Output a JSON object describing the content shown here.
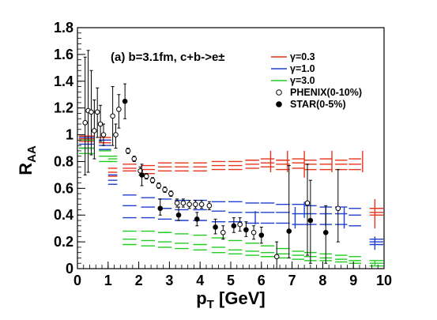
{
  "chart_data": {
    "type": "scatter",
    "annotation": "(a) b=3.1fm, c+b->e±",
    "xlabel": "p",
    "xlabel_sub": "T",
    "xlabel_unit": " [GeV]",
    "ylabel": "R",
    "ylabel_sub": "AA",
    "xlim": [
      0,
      10
    ],
    "ylim": [
      0,
      1.8
    ],
    "x_ticks": [
      0,
      1,
      2,
      3,
      4,
      5,
      6,
      7,
      8,
      9,
      10
    ],
    "y_ticks": [
      0,
      0.2,
      0.4,
      0.6,
      0.8,
      1,
      1.2,
      1.4,
      1.6,
      1.8
    ],
    "y_tick_labels": [
      "0",
      "0.2",
      "0.4",
      "0.6",
      "0.8",
      "1",
      "1.2",
      "1.4",
      "1.6",
      "1.8"
    ],
    "legend_position": "top-right",
    "series": [
      {
        "name": "γ=0.3",
        "color": "#e8341c",
        "style": "bands",
        "bands": [
          {
            "x": 0.3,
            "w": 0.5,
            "y": [
              0.99,
              0.97,
              0.95
            ]
          },
          {
            "x": 0.9,
            "w": 0.4,
            "y": [
              0.98,
              0.96,
              0.94
            ]
          },
          {
            "x": 1.15,
            "w": 0.3,
            "y": [
              0.75,
              0.72,
              0.69
            ]
          },
          {
            "x": 1.7,
            "w": 0.45,
            "y": [
              0.78,
              0.75,
              0.73
            ]
          },
          {
            "x": 2.3,
            "w": 0.45,
            "y": [
              0.77,
              0.74,
              0.71
            ]
          },
          {
            "x": 2.85,
            "w": 0.45,
            "y": [
              0.79,
              0.76,
              0.73
            ]
          },
          {
            "x": 3.4,
            "w": 0.45,
            "y": [
              0.79,
              0.76,
              0.73
            ]
          },
          {
            "x": 4.0,
            "w": 0.45,
            "y": [
              0.79,
              0.76,
              0.73
            ]
          },
          {
            "x": 4.6,
            "w": 0.45,
            "y": [
              0.8,
              0.77,
              0.74
            ]
          },
          {
            "x": 5.15,
            "w": 0.45,
            "y": [
              0.8,
              0.77,
              0.74
            ]
          },
          {
            "x": 5.7,
            "w": 0.45,
            "y": [
              0.81,
              0.78,
              0.75
            ]
          },
          {
            "x": 6.2,
            "w": 0.45,
            "y": [
              0.82,
              0.79,
              0.76
            ]
          },
          {
            "x": 6.7,
            "w": 0.45,
            "y": [
              0.81,
              0.78,
              0.74
            ]
          },
          {
            "x": 7.2,
            "w": 0.4,
            "y": [
              0.82,
              0.79,
              0.75
            ]
          },
          {
            "x": 7.6,
            "w": 0.4,
            "y": [
              0.81,
              0.78,
              0.74
            ]
          },
          {
            "x": 8.1,
            "w": 0.4,
            "y": [
              0.82,
              0.78,
              0.74
            ]
          },
          {
            "x": 8.6,
            "w": 0.4,
            "y": [
              0.81,
              0.78,
              0.74
            ]
          },
          {
            "x": 9.05,
            "w": 0.4,
            "y": [
              0.82,
              0.78,
              0.74
            ]
          },
          {
            "x": 9.75,
            "w": 0.45,
            "y": [
              0.45,
              0.42,
              0.4
            ]
          }
        ],
        "error_bars": [
          {
            "x": 6.3,
            "lo": 0.72,
            "hi": 0.88
          },
          {
            "x": 6.85,
            "lo": 0.72,
            "hi": 0.88
          },
          {
            "x": 7.4,
            "lo": 0.68,
            "hi": 0.88
          },
          {
            "x": 8.3,
            "lo": 0.72,
            "hi": 0.88
          },
          {
            "x": 9.3,
            "lo": 0.72,
            "hi": 0.88
          },
          {
            "x": 9.7,
            "lo": 0.3,
            "hi": 0.52
          }
        ]
      },
      {
        "name": "γ=1.0",
        "color": "#1f3fd0",
        "style": "bands",
        "bands": [
          {
            "x": 0.3,
            "w": 0.5,
            "y": [
              0.98,
              0.93,
              0.9
            ]
          },
          {
            "x": 0.9,
            "w": 0.4,
            "y": [
              0.96,
              0.92,
              0.89
            ]
          },
          {
            "x": 1.15,
            "w": 0.3,
            "y": [
              0.7,
              0.66,
              0.63
            ]
          },
          {
            "x": 1.7,
            "w": 0.45,
            "y": [
              0.55,
              0.47,
              0.38
            ]
          },
          {
            "x": 2.3,
            "w": 0.45,
            "y": [
              0.53,
              0.46,
              0.38
            ]
          },
          {
            "x": 2.85,
            "w": 0.45,
            "y": [
              0.52,
              0.45,
              0.37
            ]
          },
          {
            "x": 3.4,
            "w": 0.45,
            "y": [
              0.51,
              0.44,
              0.36
            ]
          },
          {
            "x": 4.0,
            "w": 0.45,
            "y": [
              0.51,
              0.44,
              0.36
            ]
          },
          {
            "x": 4.6,
            "w": 0.45,
            "y": [
              0.5,
              0.43,
              0.35
            ]
          },
          {
            "x": 5.15,
            "w": 0.45,
            "y": [
              0.5,
              0.42,
              0.35
            ]
          },
          {
            "x": 5.7,
            "w": 0.45,
            "y": [
              0.49,
              0.42,
              0.34
            ]
          },
          {
            "x": 6.2,
            "w": 0.45,
            "y": [
              0.49,
              0.42,
              0.34
            ]
          },
          {
            "x": 6.7,
            "w": 0.45,
            "y": [
              0.48,
              0.42,
              0.34
            ]
          },
          {
            "x": 7.2,
            "w": 0.4,
            "y": [
              0.48,
              0.41,
              0.33
            ]
          },
          {
            "x": 7.6,
            "w": 0.4,
            "y": [
              0.47,
              0.41,
              0.33
            ]
          },
          {
            "x": 8.1,
            "w": 0.4,
            "y": [
              0.46,
              0.41,
              0.33
            ]
          },
          {
            "x": 8.6,
            "w": 0.4,
            "y": [
              0.46,
              0.41,
              0.33
            ]
          },
          {
            "x": 9.05,
            "w": 0.4,
            "y": [
              0.45,
              0.4,
              0.32
            ]
          },
          {
            "x": 9.75,
            "w": 0.45,
            "y": [
              0.22,
              0.2,
              0.18
            ]
          }
        ],
        "error_bars": [
          {
            "x": 5.8,
            "lo": 0.33,
            "hi": 0.43
          },
          {
            "x": 7.1,
            "lo": 0.3,
            "hi": 0.46
          },
          {
            "x": 7.4,
            "lo": 0.38,
            "hi": 0.5
          },
          {
            "x": 8.1,
            "lo": 0.32,
            "hi": 0.46
          },
          {
            "x": 8.7,
            "lo": 0.3,
            "hi": 0.46
          },
          {
            "x": 9.7,
            "lo": 0.14,
            "hi": 0.24
          }
        ]
      },
      {
        "name": "γ=3.0",
        "color": "#22cc22",
        "style": "bands",
        "bands": [
          {
            "x": 0.3,
            "w": 0.5,
            "y": [
              0.96,
              0.9,
              0.86
            ]
          },
          {
            "x": 0.9,
            "w": 0.4,
            "y": [
              0.88,
              0.84,
              0.8
            ]
          },
          {
            "x": 1.15,
            "w": 0.3,
            "y": [
              0.84,
              0.82,
              0.8
            ]
          },
          {
            "x": 1.7,
            "w": 0.45,
            "y": [
              0.28,
              0.22,
              0.18
            ]
          },
          {
            "x": 2.3,
            "w": 0.45,
            "y": [
              0.28,
              0.21,
              0.17
            ]
          },
          {
            "x": 2.85,
            "w": 0.45,
            "y": [
              0.27,
              0.2,
              0.16
            ]
          },
          {
            "x": 3.4,
            "w": 0.45,
            "y": [
              0.26,
              0.19,
              0.15
            ]
          },
          {
            "x": 4.0,
            "w": 0.45,
            "y": [
              0.25,
              0.18,
              0.14
            ]
          },
          {
            "x": 4.6,
            "w": 0.45,
            "y": [
              0.23,
              0.16,
              0.12
            ]
          },
          {
            "x": 5.15,
            "w": 0.45,
            "y": [
              0.21,
              0.14,
              0.11
            ]
          },
          {
            "x": 5.7,
            "w": 0.45,
            "y": [
              0.19,
              0.13,
              0.1
            ]
          },
          {
            "x": 6.2,
            "w": 0.45,
            "y": [
              0.17,
              0.12,
              0.09
            ]
          },
          {
            "x": 6.7,
            "w": 0.45,
            "y": [
              0.15,
              0.11,
              0.08
            ]
          },
          {
            "x": 7.2,
            "w": 0.4,
            "y": [
              0.13,
              0.1,
              0.07
            ]
          },
          {
            "x": 7.6,
            "w": 0.4,
            "y": [
              0.12,
              0.09,
              0.06
            ]
          },
          {
            "x": 8.1,
            "w": 0.4,
            "y": [
              0.11,
              0.08,
              0.06
            ]
          },
          {
            "x": 8.6,
            "w": 0.4,
            "y": [
              0.1,
              0.07,
              0.05
            ]
          },
          {
            "x": 9.05,
            "w": 0.4,
            "y": [
              0.09,
              0.06,
              0.04
            ]
          },
          {
            "x": 9.75,
            "w": 0.45,
            "y": [
              0.06,
              0.04,
              0.02
            ]
          }
        ],
        "error_bars": [
          {
            "x": 9.7,
            "lo": 0.02,
            "hi": 0.06
          }
        ]
      },
      {
        "name": "PHENIX(0-10%)",
        "color": "#000000",
        "marker": "open-circle",
        "points": [
          {
            "x": 0.25,
            "y": 1.09,
            "lo": 0.7,
            "hi": 1.58
          },
          {
            "x": 0.35,
            "y": 1.18,
            "lo": 0.72,
            "hi": 1.63
          },
          {
            "x": 0.45,
            "y": 1.17,
            "lo": 0.85,
            "hi": 1.48
          },
          {
            "x": 0.55,
            "y": 1.03,
            "lo": 0.82,
            "hi": 1.26
          },
          {
            "x": 0.65,
            "y": 1.17,
            "lo": 0.98,
            "hi": 1.35
          },
          {
            "x": 0.75,
            "y": 1.08,
            "lo": 0.95,
            "hi": 1.22
          },
          {
            "x": 0.85,
            "y": 1.0,
            "lo": 0.92,
            "hi": 1.08
          },
          {
            "x": 1.15,
            "y": 1.14,
            "lo": 0.92,
            "hi": 1.36
          },
          {
            "x": 1.25,
            "y": 1.0,
            "lo": 0.9,
            "hi": 1.08
          },
          {
            "x": 1.35,
            "y": 1.19,
            "lo": 1.05,
            "hi": 1.3
          },
          {
            "x": 1.65,
            "y": 0.88,
            "lo": 0.86,
            "hi": 0.9
          },
          {
            "x": 1.85,
            "y": 0.82,
            "lo": 0.8,
            "hi": 0.84
          },
          {
            "x": 2.05,
            "y": 0.73,
            "lo": 0.7,
            "hi": 0.76
          },
          {
            "x": 2.25,
            "y": 0.69,
            "lo": 0.67,
            "hi": 0.71
          },
          {
            "x": 2.45,
            "y": 0.66,
            "lo": 0.64,
            "hi": 0.68
          },
          {
            "x": 2.65,
            "y": 0.62,
            "lo": 0.6,
            "hi": 0.64
          },
          {
            "x": 2.85,
            "y": 0.59,
            "lo": 0.57,
            "hi": 0.61
          },
          {
            "x": 3.05,
            "y": 0.56,
            "lo": 0.54,
            "hi": 0.58
          },
          {
            "x": 3.25,
            "y": 0.49,
            "lo": 0.46,
            "hi": 0.52
          },
          {
            "x": 3.45,
            "y": 0.49,
            "lo": 0.46,
            "hi": 0.52
          },
          {
            "x": 3.65,
            "y": 0.48,
            "lo": 0.45,
            "hi": 0.51
          },
          {
            "x": 3.85,
            "y": 0.48,
            "lo": 0.45,
            "hi": 0.51
          },
          {
            "x": 4.05,
            "y": 0.48,
            "lo": 0.45,
            "hi": 0.51
          },
          {
            "x": 4.3,
            "y": 0.47,
            "lo": 0.44,
            "hi": 0.5
          },
          {
            "x": 4.75,
            "y": 0.27,
            "lo": 0.22,
            "hi": 0.32
          },
          {
            "x": 5.3,
            "y": 0.33,
            "lo": 0.28,
            "hi": 0.38
          },
          {
            "x": 5.75,
            "y": 0.27,
            "lo": 0.22,
            "hi": 0.32
          },
          {
            "x": 6.5,
            "y": 0.09,
            "lo": 0.0,
            "hi": 0.2
          },
          {
            "x": 7.5,
            "y": 0.49,
            "lo": 0.1,
            "hi": 0.78
          },
          {
            "x": 8.5,
            "y": 0.45,
            "lo": 0.2,
            "hi": 0.74
          }
        ]
      },
      {
        "name": "STAR(0-5%)",
        "color": "#000000",
        "marker": "filled-circle",
        "points": [
          {
            "x": 1.55,
            "y": 1.25,
            "lo": 1.12,
            "hi": 1.38
          },
          {
            "x": 2.1,
            "y": 0.7,
            "lo": 0.62,
            "hi": 0.78
          },
          {
            "x": 2.7,
            "y": 0.45,
            "lo": 0.4,
            "hi": 0.52
          },
          {
            "x": 3.3,
            "y": 0.4,
            "lo": 0.36,
            "hi": 0.46
          },
          {
            "x": 3.9,
            "y": 0.37,
            "lo": 0.32,
            "hi": 0.42
          },
          {
            "x": 4.5,
            "y": 0.31,
            "lo": 0.26,
            "hi": 0.37
          },
          {
            "x": 5.1,
            "y": 0.32,
            "lo": 0.27,
            "hi": 0.38
          },
          {
            "x": 5.5,
            "y": 0.29,
            "lo": 0.24,
            "hi": 0.35
          },
          {
            "x": 6.0,
            "y": 0.25,
            "lo": 0.19,
            "hi": 0.31
          },
          {
            "x": 6.9,
            "y": 0.28,
            "lo": 0.08,
            "hi": 0.77
          },
          {
            "x": 7.6,
            "y": 0.36,
            "lo": 0.04,
            "hi": 0.66
          },
          {
            "x": 8.1,
            "y": 0.27,
            "lo": 0.04,
            "hi": 0.47
          }
        ]
      }
    ]
  }
}
